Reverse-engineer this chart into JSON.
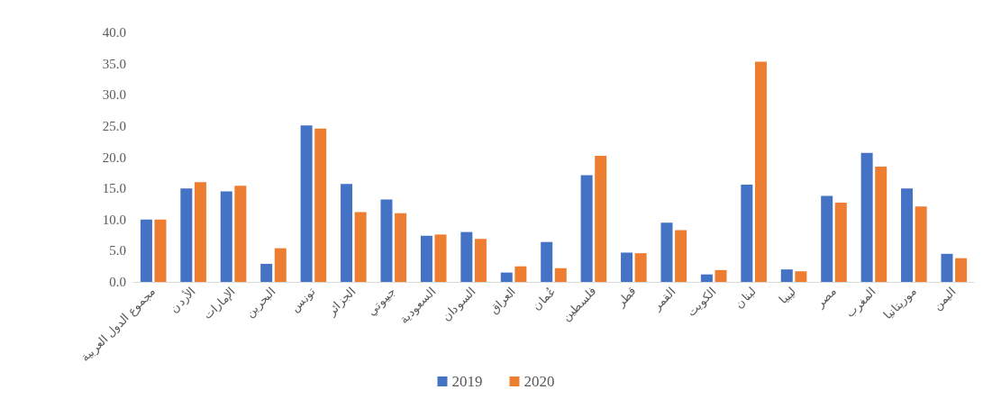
{
  "chart_data": {
    "type": "bar",
    "categories": [
      "مجموع الدول العربية",
      "الأردن",
      "الإمارات",
      "البحرين",
      "تونس",
      "الجزائر",
      "جيبوتي",
      "السعودية",
      "السودان",
      "العراق",
      "عُمان",
      "فلسطين",
      "قطر",
      "القمر",
      "الكويت",
      "لبنان",
      "ليبيا",
      "مصر",
      "المغرب",
      "موريتانيا",
      "اليمن"
    ],
    "series": [
      {
        "name": "2019",
        "color": "#4472c4",
        "values": [
          10.0,
          15.0,
          14.5,
          2.9,
          25.1,
          15.7,
          13.2,
          7.4,
          8.0,
          1.5,
          6.4,
          17.1,
          4.7,
          9.5,
          1.2,
          15.6,
          2.0,
          13.8,
          20.7,
          15.0,
          4.5
        ]
      },
      {
        "name": "2020",
        "color": "#ed7d31",
        "values": [
          10.0,
          16.0,
          15.4,
          5.4,
          24.6,
          11.2,
          11.0,
          7.6,
          6.9,
          2.5,
          2.2,
          20.2,
          4.6,
          8.3,
          1.9,
          35.3,
          1.7,
          12.7,
          18.5,
          12.1,
          3.8
        ]
      }
    ],
    "ylim": [
      0,
      40
    ],
    "yticks": [
      {
        "value": 0,
        "label": "0.0"
      },
      {
        "value": 5,
        "label": "5.0"
      },
      {
        "value": 10,
        "label": "10.0"
      },
      {
        "value": 15,
        "label": "15.0"
      },
      {
        "value": 20,
        "label": "20.0"
      },
      {
        "value": 25,
        "label": "25.0"
      },
      {
        "value": 30,
        "label": "30.0"
      },
      {
        "value": 35,
        "label": "35.0"
      },
      {
        "value": 40,
        "label": "40.0"
      }
    ],
    "grid": false,
    "legend": "bottom"
  }
}
